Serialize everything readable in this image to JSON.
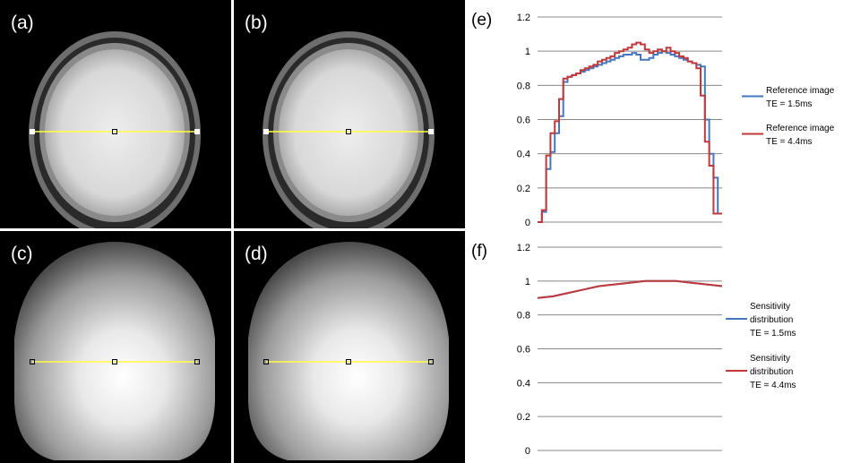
{
  "panels": [
    {
      "letter": "(a)",
      "kind": "brain"
    },
    {
      "letter": "(b)",
      "kind": "brain"
    },
    {
      "letter": "(c)",
      "kind": "sensitivity"
    },
    {
      "letter": "(d)",
      "kind": "sensitivity"
    }
  ],
  "colors": {
    "series_blue": "#4677bd",
    "series_red": "#c0383a",
    "profile_line": "#ffff40",
    "gridline": "#888888"
  },
  "chart_data": [
    {
      "id": "e",
      "letter": "(e)",
      "type": "line",
      "step": true,
      "ylim": [
        0,
        1.2
      ],
      "yticks": [
        "0",
        "0.2",
        "0.4",
        "0.6",
        "0.8",
        "1",
        "1.2"
      ],
      "xlabel": "",
      "ylabel": "",
      "grid": true,
      "legend_position": "right",
      "series": [
        {
          "name_lines": [
            "Reference image",
            "TE = 1.5ms"
          ],
          "color": "#4677bd",
          "values": [
            0.0,
            0.06,
            0.31,
            0.41,
            0.52,
            0.62,
            0.82,
            0.85,
            0.86,
            0.87,
            0.88,
            0.89,
            0.9,
            0.91,
            0.92,
            0.93,
            0.94,
            0.95,
            0.96,
            0.97,
            0.98,
            0.98,
            0.99,
            0.98,
            0.95,
            0.95,
            0.96,
            0.98,
            0.99,
            1.0,
            0.99,
            0.98,
            0.97,
            0.96,
            0.95,
            0.94,
            0.93,
            0.92,
            0.91,
            0.6,
            0.4,
            0.26,
            0.05
          ]
        },
        {
          "name_lines": [
            "Reference image",
            "TE = 4.4ms"
          ],
          "color": "#c0383a",
          "values": [
            0.0,
            0.07,
            0.39,
            0.52,
            0.59,
            0.72,
            0.84,
            0.85,
            0.86,
            0.87,
            0.89,
            0.9,
            0.91,
            0.92,
            0.94,
            0.95,
            0.96,
            0.97,
            0.99,
            1.0,
            1.01,
            1.02,
            1.04,
            1.05,
            1.04,
            1.01,
            0.99,
            1.0,
            1.01,
            1.0,
            1.02,
            1.0,
            0.99,
            0.97,
            0.96,
            0.94,
            0.93,
            0.9,
            0.74,
            0.47,
            0.33,
            0.05,
            0.05
          ]
        }
      ]
    },
    {
      "id": "f",
      "letter": "(f)",
      "type": "line",
      "step": false,
      "ylim": [
        0,
        1.2
      ],
      "yticks": [
        "0",
        "0.2",
        "0.4",
        "0.6",
        "0.8",
        "1",
        "1.2"
      ],
      "xlabel": "",
      "ylabel": "",
      "grid": true,
      "legend_position": "right",
      "series": [
        {
          "name_lines": [
            "Sensitivity",
            "distribution",
            "TE = 1.5ms"
          ],
          "color": "#4677bd",
          "values": [
            0.9,
            0.91,
            0.93,
            0.95,
            0.97,
            0.98,
            0.99,
            1.0,
            1.0,
            1.0,
            0.99,
            0.98,
            0.97
          ]
        },
        {
          "name_lines": [
            "Sensitivity",
            "distribution",
            "TE = 4.4ms"
          ],
          "color": "#c0383a",
          "values": [
            0.9,
            0.91,
            0.93,
            0.95,
            0.97,
            0.98,
            0.99,
            1.0,
            1.0,
            1.0,
            0.99,
            0.98,
            0.97
          ]
        }
      ]
    }
  ]
}
